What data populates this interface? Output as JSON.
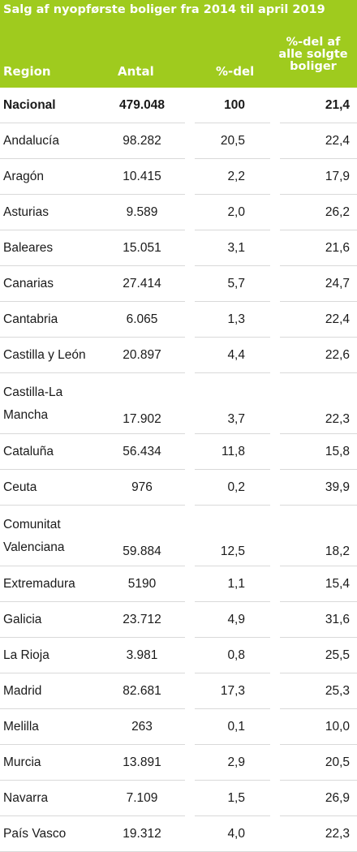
{
  "title": "Salg af nyopførste boliger fra 2014 til april 2019",
  "headers": {
    "region": "Region",
    "antal": "Antal",
    "pct": "%-del",
    "share": "%-del af alle solgte boliger"
  },
  "colors": {
    "header_bg": "#9fcb1e",
    "header_text": "#ffffff",
    "divider": "#d9d9d9"
  },
  "rows": [
    {
      "region": "Nacional",
      "antal": "479.048",
      "pct": "100",
      "share": "21,4",
      "bold": true
    },
    {
      "region": "Andalucía",
      "antal": "98.282",
      "pct": "20,5",
      "share": "22,4"
    },
    {
      "region": "Aragón",
      "antal": "10.415",
      "pct": "2,2",
      "share": "17,9"
    },
    {
      "region": "Asturias",
      "antal": "9.589",
      "pct": "2,0",
      "share": "26,2"
    },
    {
      "region": "Baleares",
      "antal": "15.051",
      "pct": "3,1",
      "share": "21,6"
    },
    {
      "region": "Canarias",
      "antal": "27.414",
      "pct": "5,7",
      "share": "24,7"
    },
    {
      "region": "Cantabria",
      "antal": "6.065",
      "pct": "1,3",
      "share": "22,4"
    },
    {
      "region": "Castilla y León",
      "antal": "20.897",
      "pct": "4,4",
      "share": "22,6"
    },
    {
      "region": "Castilla-La Mancha",
      "antal": "17.902",
      "pct": "3,7",
      "share": "22,3",
      "tall": true
    },
    {
      "region": "Cataluña",
      "antal": "56.434",
      "pct": "11,8",
      "share": "15,8"
    },
    {
      "region": "Ceuta",
      "antal": "976",
      "pct": "0,2",
      "share": "39,9"
    },
    {
      "region": "Comunitat Valenciana",
      "antal": "59.884",
      "pct": "12,5",
      "share": "18,2",
      "tall": true
    },
    {
      "region": "Extremadura",
      "antal": "5190",
      "pct": "1,1",
      "share": "15,4"
    },
    {
      "region": "Galicia",
      "antal": "23.712",
      "pct": "4,9",
      "share": "31,6"
    },
    {
      "region": "La Rioja",
      "antal": "3.981",
      "pct": "0,8",
      "share": "25,5"
    },
    {
      "region": "Madrid",
      "antal": "82.681",
      "pct": "17,3",
      "share": "25,3"
    },
    {
      "region": "Melilla",
      "antal": "263",
      "pct": "0,1",
      "share": "10,0"
    },
    {
      "region": "Murcia",
      "antal": "13.891",
      "pct": "2,9",
      "share": "20,5"
    },
    {
      "region": "Navarra",
      "antal": "7.109",
      "pct": "1,5",
      "share": "26,9"
    },
    {
      "region": "País Vasco",
      "antal": "19.312",
      "pct": "4,0",
      "share": "22,3"
    }
  ]
}
